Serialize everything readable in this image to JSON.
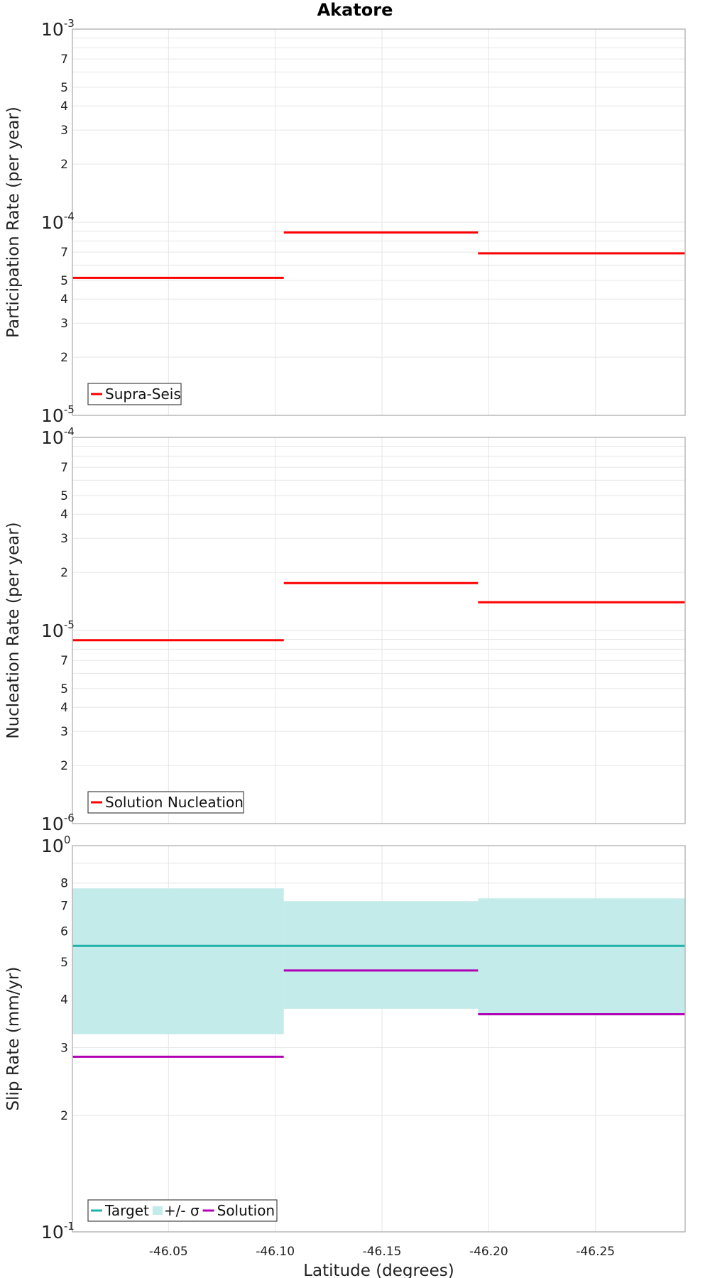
{
  "figure_title": "Akatore",
  "chart_data": [
    {
      "type": "line",
      "panel": "participation",
      "title": "Akatore",
      "ylabel": "Participation Rate (per year)",
      "xlabel": "",
      "yscale": "log",
      "ylim": [
        1e-05,
        0.001
      ],
      "y_decade_labels": [
        {
          "base": "10",
          "exp": "-3",
          "value": 0.001
        },
        {
          "base": "10",
          "exp": "-4",
          "value": 0.0001
        },
        {
          "base": "10",
          "exp": "-5",
          "value": 1e-05
        }
      ],
      "y_minor_labels": [
        "7",
        "5",
        "4",
        "3",
        "2"
      ],
      "xlim": [
        -46.005,
        -46.292
      ],
      "x_ticks": [
        -46.05,
        -46.1,
        -46.15,
        -46.2,
        -46.25
      ],
      "grid": true,
      "legend_placement": "bottom-left",
      "series": [
        {
          "name": "Supra-Seis",
          "color": "#ff0000",
          "segments": [
            {
              "x": [
                -46.005,
                -46.104
              ],
              "y": 5.15e-05
            },
            {
              "x": [
                -46.104,
                -46.195
              ],
              "y": 8.85e-05
            },
            {
              "x": [
                -46.195,
                -46.292
              ],
              "y": 6.9e-05
            }
          ]
        }
      ]
    },
    {
      "type": "line",
      "panel": "nucleation",
      "ylabel": "Nucleation Rate (per year)",
      "xlabel": "",
      "yscale": "log",
      "ylim": [
        1e-06,
        0.0001
      ],
      "y_decade_labels": [
        {
          "base": "10",
          "exp": "-4",
          "value": 0.0001
        },
        {
          "base": "10",
          "exp": "-5",
          "value": 1e-05
        },
        {
          "base": "10",
          "exp": "-6",
          "value": 1e-06
        }
      ],
      "y_minor_labels": [
        "7",
        "5",
        "4",
        "3",
        "2"
      ],
      "xlim": [
        -46.005,
        -46.292
      ],
      "x_ticks": [
        -46.05,
        -46.1,
        -46.15,
        -46.2,
        -46.25
      ],
      "grid": true,
      "legend_placement": "bottom-left",
      "series": [
        {
          "name": "Solution Nucleation",
          "color": "#ff0000",
          "segments": [
            {
              "x": [
                -46.005,
                -46.104
              ],
              "y": 8.9e-06
            },
            {
              "x": [
                -46.104,
                -46.195
              ],
              "y": 1.76e-05
            },
            {
              "x": [
                -46.195,
                -46.292
              ],
              "y": 1.4e-05
            }
          ]
        }
      ]
    },
    {
      "type": "line",
      "panel": "slip",
      "ylabel": "Slip Rate (mm/yr)",
      "xlabel": "Latitude (degrees)",
      "yscale": "log",
      "ylim": [
        0.1,
        1.0
      ],
      "y_decade_labels": [
        {
          "base": "10",
          "exp": "0",
          "value": 1.0
        },
        {
          "base": "10",
          "exp": "-1",
          "value": 0.1
        }
      ],
      "y_minor_labels": [
        "8",
        "7",
        "6",
        "5",
        "4",
        "3",
        "2"
      ],
      "xlim": [
        -46.005,
        -46.292
      ],
      "x_ticks": [
        -46.05,
        -46.1,
        -46.15,
        -46.2,
        -46.25
      ],
      "x_tick_labels": [
        "-46.05",
        "-46.10",
        "-46.15",
        "-46.20",
        "-46.25"
      ],
      "grid": true,
      "legend_placement": "bottom-left",
      "series": [
        {
          "name": "Target",
          "color": "#20b2aa",
          "segments": [
            {
              "x": [
                -46.005,
                -46.292
              ],
              "y": 0.55
            }
          ]
        },
        {
          "name": "+/- σ",
          "color": "#c2ebe9",
          "kind": "band",
          "segments": [
            {
              "x": [
                -46.005,
                -46.104
              ],
              "y_low": 0.325,
              "y_high": 0.775
            },
            {
              "x": [
                -46.104,
                -46.195
              ],
              "y_low": 0.378,
              "y_high": 0.718
            },
            {
              "x": [
                -46.195,
                -46.292
              ],
              "y_low": 0.368,
              "y_high": 0.73
            }
          ]
        },
        {
          "name": "Solution",
          "color": "#b000b5",
          "segments": [
            {
              "x": [
                -46.005,
                -46.104
              ],
              "y": 0.284
            },
            {
              "x": [
                -46.104,
                -46.195
              ],
              "y": 0.475
            },
            {
              "x": [
                -46.195,
                -46.292
              ],
              "y": 0.366
            }
          ]
        }
      ]
    }
  ]
}
